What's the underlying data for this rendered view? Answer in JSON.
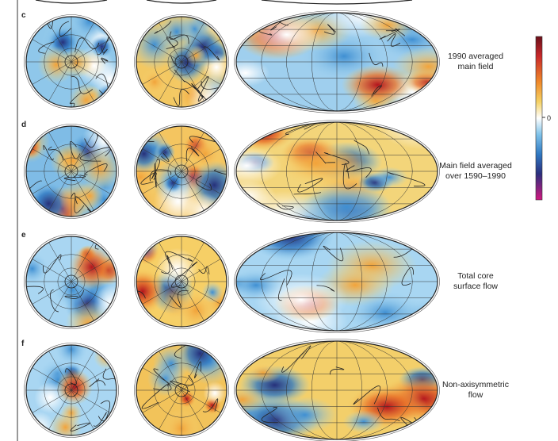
{
  "panels": [
    {
      "letter": "c",
      "caption": [
        "1990 averaged",
        "main field"
      ]
    },
    {
      "letter": "d",
      "caption": [
        "Main field averaged",
        "over 1590–1990"
      ]
    },
    {
      "letter": "e",
      "caption": [
        "Total core",
        "surface flow"
      ]
    },
    {
      "letter": "f",
      "caption": [
        "Non-axisymmetric",
        "flow"
      ]
    }
  ],
  "colorbar": {
    "label": "0"
  }
}
